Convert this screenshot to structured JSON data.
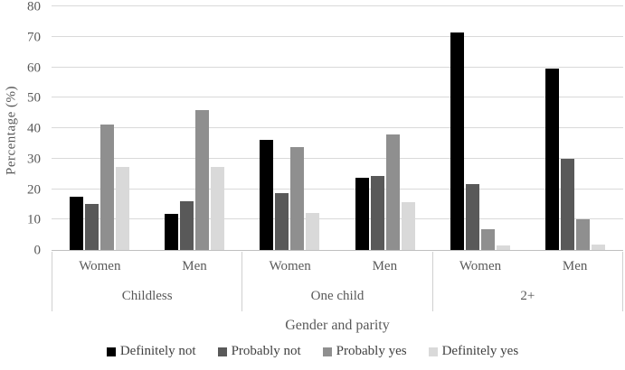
{
  "chart_data": {
    "type": "bar",
    "title": "",
    "xlabel": "Gender and parity",
    "ylabel": "Percentage  (%)",
    "ylim": [
      0,
      80
    ],
    "y_ticks": [
      0,
      10,
      20,
      30,
      40,
      50,
      60,
      70,
      80
    ],
    "grid": true,
    "legend_position": "bottom",
    "groups": [
      {
        "label": "Childless",
        "subcategories": [
          "Women",
          "Men"
        ]
      },
      {
        "label": "One child",
        "subcategories": [
          "Women",
          "Men"
        ]
      },
      {
        "label": "2+",
        "subcategories": [
          "Women",
          "Men"
        ]
      }
    ],
    "series": [
      {
        "name": "Definitely not",
        "color": "#000000",
        "values": [
          17.6,
          12.0,
          36.1,
          23.6,
          71.4,
          59.6
        ]
      },
      {
        "name": "Probably not",
        "color": "#595959",
        "values": [
          15.0,
          16.1,
          18.6,
          24.4,
          21.5,
          29.8
        ]
      },
      {
        "name": "Probably yes",
        "color": "#8f8f8f",
        "values": [
          41.2,
          45.8,
          33.8,
          37.8,
          6.8,
          10.0
        ]
      },
      {
        "name": "Definitely yes",
        "color": "#d9d9d9",
        "values": [
          27.4,
          27.4,
          12.1,
          15.6,
          1.6,
          1.9
        ]
      }
    ]
  },
  "colors": {
    "gridline": "#d9d9d9",
    "axis_line": "#bfbfbf",
    "tick_text": "#595959",
    "label_text": "#404040"
  }
}
